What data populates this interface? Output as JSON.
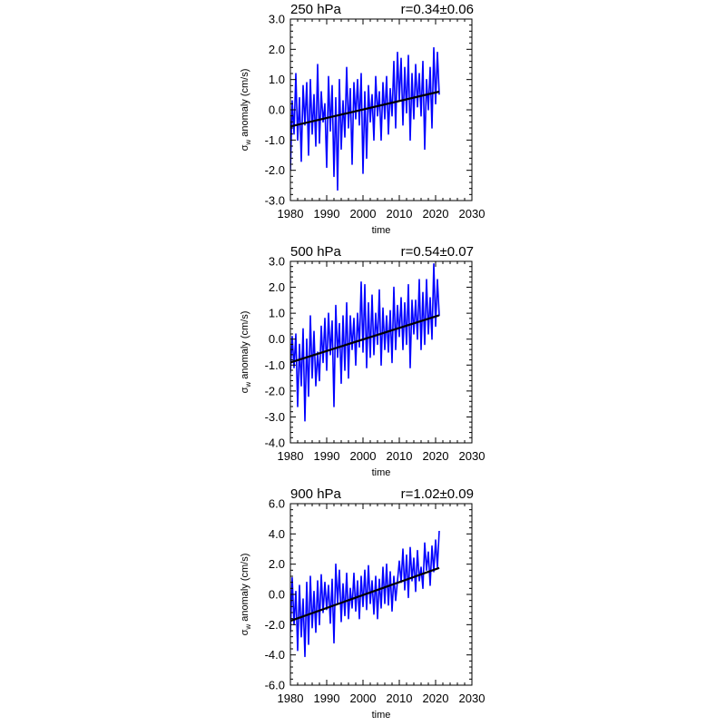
{
  "colors": {
    "series": "#0000ff",
    "trend": "#000000",
    "frame": "#000000",
    "background": "#ffffff"
  },
  "chart_data": [
    {
      "type": "line",
      "title": "250 hPa",
      "annotation": "r=0.34±0.06",
      "xlabel": "time",
      "ylabel_symbol": "σ",
      "ylabel_sub": "w",
      "ylabel_rest": " anomaly (cm/s)",
      "xlim": [
        1980,
        2030
      ],
      "ylim": [
        -3.0,
        3.0
      ],
      "xticks": [
        1980,
        1990,
        2000,
        2010,
        2020,
        2030
      ],
      "xtick_labels": [
        "1980",
        "1990",
        "2000",
        "2010",
        "2020",
        "2030"
      ],
      "yticks": [
        -3.0,
        -2.0,
        -1.0,
        0.0,
        1.0,
        2.0,
        3.0
      ],
      "ytick_labels": [
        "-3.0",
        "-2.0",
        "-1.0",
        "0.0",
        "1.0",
        "2.0",
        "3.0"
      ],
      "grid": false,
      "series": [
        {
          "role": "monthly",
          "x": [
            1980.0,
            1980.5,
            1981.0,
            1981.5,
            1982.0,
            1982.5,
            1983.0,
            1983.5,
            1984.0,
            1984.5,
            1985.0,
            1985.5,
            1986.0,
            1986.5,
            1987.0,
            1987.5,
            1988.0,
            1988.5,
            1989.0,
            1989.5,
            1990.0,
            1990.5,
            1991.0,
            1991.5,
            1992.0,
            1992.5,
            1993.0,
            1993.5,
            1994.0,
            1994.5,
            1995.0,
            1995.5,
            1996.0,
            1996.5,
            1997.0,
            1997.5,
            1998.0,
            1998.5,
            1999.0,
            1999.5,
            2000.0,
            2000.5,
            2001.0,
            2001.5,
            2002.0,
            2002.5,
            2003.0,
            2003.5,
            2004.0,
            2004.5,
            2005.0,
            2005.5,
            2006.0,
            2006.5,
            2007.0,
            2007.5,
            2008.0,
            2008.5,
            2009.0,
            2009.5,
            2010.0,
            2010.5,
            2011.0,
            2011.5,
            2012.0,
            2012.5,
            2013.0,
            2013.5,
            2014.0,
            2014.5,
            2015.0,
            2015.5,
            2016.0,
            2016.5,
            2017.0,
            2017.5,
            2018.0,
            2018.5,
            2019.0,
            2019.5,
            2020.0,
            2020.5,
            2021.0
          ],
          "y": [
            -2.0,
            0.3,
            -0.8,
            1.2,
            -1.0,
            0.4,
            -1.7,
            0.8,
            -0.5,
            0.9,
            -1.5,
            1.0,
            -0.8,
            0.5,
            -1.2,
            1.5,
            -1.1,
            0.6,
            -0.4,
            0.2,
            -1.9,
            1.1,
            -0.7,
            0.8,
            -2.2,
            0.4,
            -2.65,
            1.0,
            -1.3,
            0.3,
            -0.9,
            1.4,
            -0.6,
            0.7,
            -1.8,
            0.9,
            -0.3,
            1.0,
            -0.5,
            1.2,
            -2.1,
            0.6,
            -1.6,
            0.8,
            -0.4,
            0.5,
            -1.0,
            1.1,
            -0.2,
            0.6,
            -1.0,
            0.9,
            -0.3,
            1.1,
            -0.8,
            0.7,
            -0.2,
            1.6,
            -0.6,
            1.9,
            0.3,
            1.7,
            -0.5,
            1.4,
            -0.1,
            1.8,
            -1.0,
            1.2,
            -0.3,
            1.5,
            0.1,
            1.2,
            -0.2,
            1.6,
            -1.3,
            1.0,
            0.0,
            1.4,
            -0.6,
            2.05,
            0.2,
            1.9,
            0.5
          ]
        },
        {
          "role": "trend",
          "x": [
            1980,
            2021
          ],
          "y": [
            -0.55,
            0.6
          ]
        }
      ]
    },
    {
      "type": "line",
      "title": "500 hPa",
      "annotation": "r=0.54±0.07",
      "xlabel": "time",
      "ylabel_symbol": "σ",
      "ylabel_sub": "w",
      "ylabel_rest": " anomaly (cm/s)",
      "xlim": [
        1980,
        2030
      ],
      "ylim": [
        -4.0,
        3.0
      ],
      "xticks": [
        1980,
        1990,
        2000,
        2010,
        2020,
        2030
      ],
      "xtick_labels": [
        "1980",
        "1990",
        "2000",
        "2010",
        "2020",
        "2030"
      ],
      "yticks": [
        -4.0,
        -3.0,
        -2.0,
        -1.0,
        0.0,
        1.0,
        2.0,
        3.0
      ],
      "ytick_labels": [
        "-4.0",
        "-3.0",
        "-2.0",
        "-1.0",
        "0.0",
        "1.0",
        "2.0",
        "3.0"
      ],
      "grid": false,
      "series": [
        {
          "role": "monthly",
          "x": [
            1980.0,
            1980.5,
            1981.0,
            1981.5,
            1982.0,
            1982.5,
            1983.0,
            1983.5,
            1984.0,
            1984.5,
            1985.0,
            1985.5,
            1986.0,
            1986.5,
            1987.0,
            1987.5,
            1988.0,
            1988.5,
            1989.0,
            1989.5,
            1990.0,
            1990.5,
            1991.0,
            1991.5,
            1992.0,
            1992.5,
            1993.0,
            1993.5,
            1994.0,
            1994.5,
            1995.0,
            1995.5,
            1996.0,
            1996.5,
            1997.0,
            1997.5,
            1998.0,
            1998.5,
            1999.0,
            1999.5,
            2000.0,
            2000.5,
            2001.0,
            2001.5,
            2002.0,
            2002.5,
            2003.0,
            2003.5,
            2004.0,
            2004.5,
            2005.0,
            2005.5,
            2006.0,
            2006.5,
            2007.0,
            2007.5,
            2008.0,
            2008.5,
            2009.0,
            2009.5,
            2010.0,
            2010.5,
            2011.0,
            2011.5,
            2012.0,
            2012.5,
            2013.0,
            2013.5,
            2014.0,
            2014.5,
            2015.0,
            2015.5,
            2016.0,
            2016.5,
            2017.0,
            2017.5,
            2018.0,
            2018.5,
            2019.0,
            2019.5,
            2020.0,
            2020.5,
            2021.0
          ],
          "y": [
            -1.3,
            0.1,
            -1.1,
            0.2,
            -2.6,
            -0.2,
            -1.8,
            0.4,
            -3.15,
            0.0,
            -2.2,
            0.9,
            -1.5,
            0.3,
            -1.8,
            -0.5,
            -1.6,
            0.5,
            -0.9,
            0.8,
            -1.2,
            1.0,
            -0.6,
            0.7,
            -2.6,
            1.3,
            -0.7,
            0.6,
            -1.7,
            0.9,
            -1.2,
            1.4,
            -1.5,
            0.9,
            -0.4,
            0.8,
            -1.0,
            1.0,
            -0.3,
            2.2,
            -0.5,
            2.1,
            -1.1,
            1.4,
            -0.7,
            1.7,
            -0.6,
            1.0,
            -0.2,
            1.9,
            -1.0,
            1.2,
            -0.4,
            0.9,
            -0.5,
            1.1,
            -0.9,
            2.0,
            -0.4,
            1.3,
            0.1,
            1.6,
            -0.4,
            1.4,
            -0.2,
            2.1,
            -1.1,
            1.5,
            0.2,
            1.5,
            0.0,
            2.3,
            -0.4,
            1.8,
            -0.2,
            2.3,
            0.2,
            1.6,
            0.0,
            2.9,
            0.5,
            2.3,
            0.9
          ]
        },
        {
          "role": "trend",
          "x": [
            1980,
            2021
          ],
          "y": [
            -0.9,
            0.92
          ]
        }
      ]
    },
    {
      "type": "line",
      "title": "900 hPa",
      "annotation": "r=1.02±0.09",
      "xlabel": "time",
      "ylabel_symbol": "σ",
      "ylabel_sub": "w",
      "ylabel_rest": " anomaly (cm/s)",
      "xlim": [
        1980,
        2030
      ],
      "ylim": [
        -6.0,
        6.0
      ],
      "xticks": [
        1980,
        1990,
        2000,
        2010,
        2020,
        2030
      ],
      "xtick_labels": [
        "1980",
        "1990",
        "2000",
        "2010",
        "2020",
        "2030"
      ],
      "yticks": [
        -6.0,
        -4.0,
        -2.0,
        0.0,
        2.0,
        4.0,
        6.0
      ],
      "ytick_labels": [
        "-6.0",
        "-4.0",
        "-2.0",
        "0.0",
        "2.0",
        "4.0",
        "6.0"
      ],
      "grid": false,
      "series": [
        {
          "role": "monthly",
          "x": [
            1980.0,
            1980.5,
            1981.0,
            1981.5,
            1982.0,
            1982.5,
            1983.0,
            1983.5,
            1984.0,
            1984.5,
            1985.0,
            1985.5,
            1986.0,
            1986.5,
            1987.0,
            1987.5,
            1988.0,
            1988.5,
            1989.0,
            1989.5,
            1990.0,
            1990.5,
            1991.0,
            1991.5,
            1992.0,
            1992.5,
            1993.0,
            1993.5,
            1994.0,
            1994.5,
            1995.0,
            1995.5,
            1996.0,
            1996.5,
            1997.0,
            1997.5,
            1998.0,
            1998.5,
            1999.0,
            1999.5,
            2000.0,
            2000.5,
            2001.0,
            2001.5,
            2002.0,
            2002.5,
            2003.0,
            2003.5,
            2004.0,
            2004.5,
            2005.0,
            2005.5,
            2006.0,
            2006.5,
            2007.0,
            2007.5,
            2008.0,
            2008.5,
            2009.0,
            2009.5,
            2010.0,
            2010.5,
            2011.0,
            2011.5,
            2012.0,
            2012.5,
            2013.0,
            2013.5,
            2014.0,
            2014.5,
            2015.0,
            2015.5,
            2016.0,
            2016.5,
            2017.0,
            2017.5,
            2018.0,
            2018.5,
            2019.0,
            2019.5,
            2020.0,
            2020.5,
            2021.0
          ],
          "y": [
            -2.5,
            1.1,
            -2.0,
            0.2,
            -3.7,
            0.6,
            -2.8,
            -0.3,
            -4.1,
            0.8,
            -3.3,
            1.2,
            -2.2,
            0.2,
            -2.5,
            0.9,
            -2.0,
            1.3,
            -1.2,
            0.8,
            -1.0,
            0.6,
            -1.9,
            1.0,
            -3.2,
            2.0,
            -0.6,
            1.6,
            -1.8,
            0.7,
            -1.4,
            1.4,
            -1.6,
            0.4,
            -0.9,
            1.4,
            -1.1,
            0.9,
            -1.6,
            1.2,
            -0.8,
            1.6,
            -1.0,
            1.9,
            -0.6,
            0.9,
            -1.3,
            1.2,
            -1.6,
            1.0,
            -0.9,
            1.8,
            -0.6,
            2.0,
            -0.7,
            1.5,
            -1.1,
            1.2,
            -0.4,
            0.9,
            2.2,
            0.8,
            3.0,
            0.3,
            2.6,
            -0.2,
            3.1,
            0.9,
            2.4,
            0.2,
            2.9,
            0.9,
            1.8,
            0.4,
            3.4,
            1.6,
            2.8,
            0.6,
            3.2,
            1.5,
            3.6,
            1.8,
            4.2
          ]
        },
        {
          "role": "trend",
          "x": [
            1980,
            2021
          ],
          "y": [
            -1.75,
            1.75
          ]
        }
      ]
    }
  ]
}
